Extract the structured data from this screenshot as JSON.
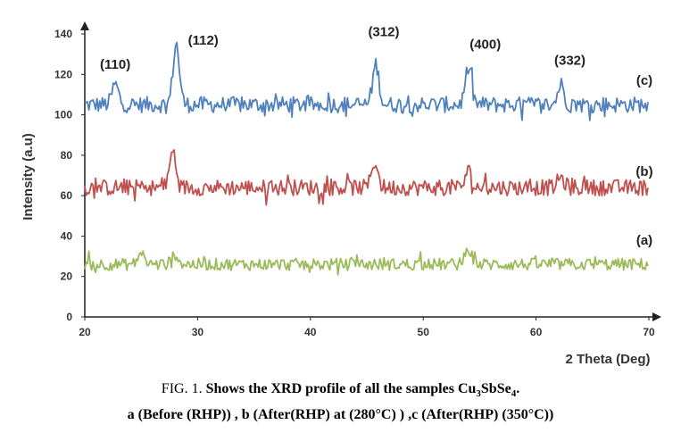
{
  "chart_data": {
    "type": "line",
    "xlabel": "2 Theta (Deg)",
    "ylabel": "Intensity (a.u)",
    "xlim": [
      20,
      70
    ],
    "ylim": [
      0,
      140
    ],
    "xticks": [
      "20",
      "30",
      "40",
      "50",
      "60",
      "70"
    ],
    "yticks": [
      "0",
      "20",
      "40",
      "60",
      "80",
      "100",
      "120",
      "140"
    ],
    "grid": false,
    "series": [
      {
        "name": "(c)",
        "color": "#4f81bd",
        "baseline": 105,
        "noise": 4,
        "peaks": [
          [
            22.7,
            10
          ],
          [
            28.1,
            30
          ],
          [
            45.8,
            20
          ],
          [
            54.0,
            18
          ],
          [
            62.2,
            10
          ]
        ]
      },
      {
        "name": "(b)",
        "color": "#c0504d",
        "baseline": 64,
        "noise": 4,
        "peaks": [
          [
            27.8,
            18
          ],
          [
            45.7,
            13
          ],
          [
            54.0,
            8
          ],
          [
            62.2,
            5
          ]
        ]
      },
      {
        "name": "(a)",
        "color": "#9bbb59",
        "baseline": 26,
        "noise": 3,
        "peaks": [
          [
            25.0,
            6
          ],
          [
            28.0,
            5
          ],
          [
            54.0,
            8
          ]
        ]
      }
    ],
    "peak_labels": [
      {
        "text": "(110)",
        "x": 22.7
      },
      {
        "text": "(112)",
        "x": 30.5
      },
      {
        "text": "(312)",
        "x": 46.5
      },
      {
        "text": "(400)",
        "x": 55.5
      },
      {
        "text": "(332)",
        "x": 63.0
      }
    ]
  },
  "caption": {
    "fig": "FIG. 1.",
    "text": "Shows the XRD profile of all the samples Cu",
    "sub1": "3",
    "mid": "SbSe",
    "sub2": "4",
    "end": ".",
    "line2": "a (Before (RHP)) , b (After(RHP) at (280°C) ) ,c (After(RHP) (350°C))"
  }
}
